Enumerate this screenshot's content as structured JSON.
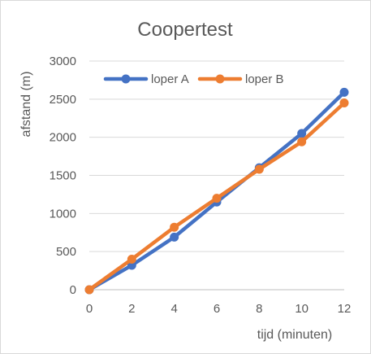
{
  "chart_data": {
    "type": "line",
    "title": "Coopertest",
    "xlabel": "tijd (minuten)",
    "ylabel": "afstand (m)",
    "x": [
      0,
      2,
      4,
      6,
      8,
      10,
      12
    ],
    "xlim": [
      0,
      12
    ],
    "ylim": [
      0,
      3000
    ],
    "x_ticks": [
      "0",
      "2",
      "4",
      "6",
      "8",
      "10",
      "12"
    ],
    "y_ticks": [
      "0",
      "500",
      "1000",
      "1500",
      "2000",
      "2500",
      "3000"
    ],
    "grid": true,
    "legend_position": "top",
    "series": [
      {
        "name": "loper A",
        "color": "#4472C4",
        "values": [
          0,
          320,
          690,
          1150,
          1600,
          2050,
          2590
        ]
      },
      {
        "name": "loper B",
        "color": "#ED7D31",
        "values": [
          0,
          400,
          820,
          1200,
          1580,
          1940,
          2450
        ]
      }
    ]
  }
}
